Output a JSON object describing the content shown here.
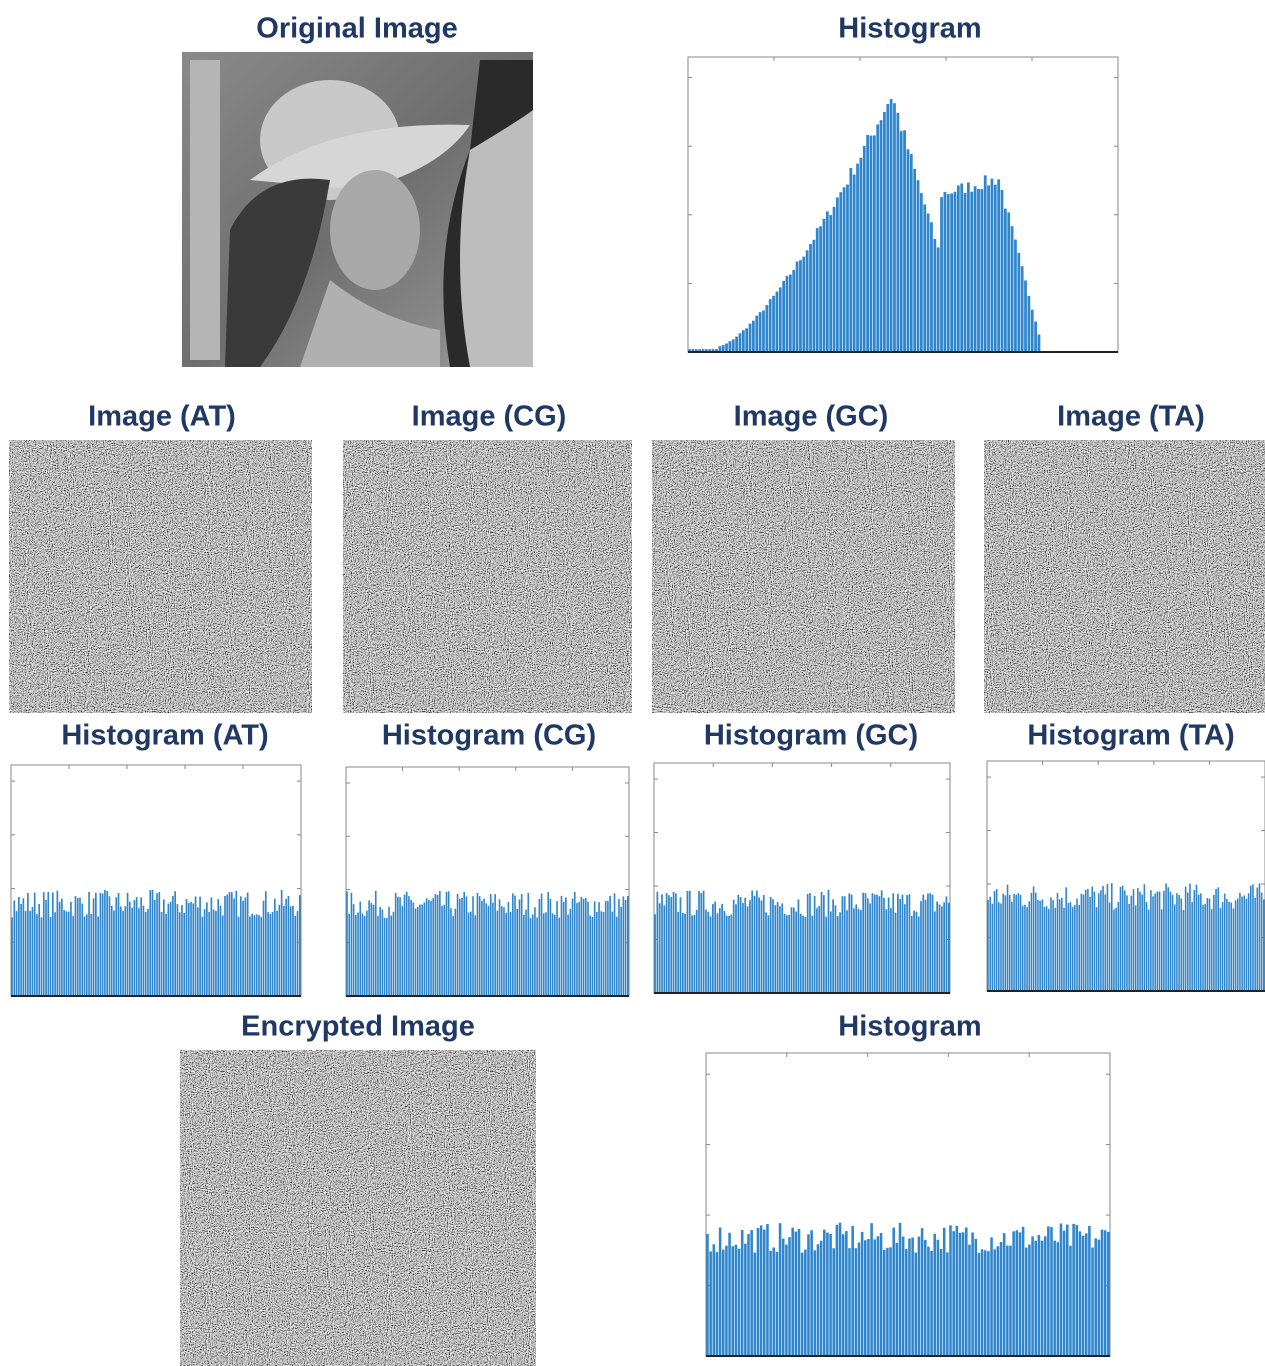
{
  "top": {
    "original_title": "Original Image",
    "histogram_title": "Histogram"
  },
  "panels": [
    {
      "image_title": "Image (AT)",
      "histogram_title": "Histogram (AT)"
    },
    {
      "image_title": "Image (CG)",
      "histogram_title": "Histogram (CG)"
    },
    {
      "image_title": "Image (GC)",
      "histogram_title": "Histogram (GC)"
    },
    {
      "image_title": "Image (TA)",
      "histogram_title": "Histogram (TA)"
    }
  ],
  "bottom": {
    "encrypted_title": "Encrypted Image",
    "histogram_title": "Histogram"
  }
}
